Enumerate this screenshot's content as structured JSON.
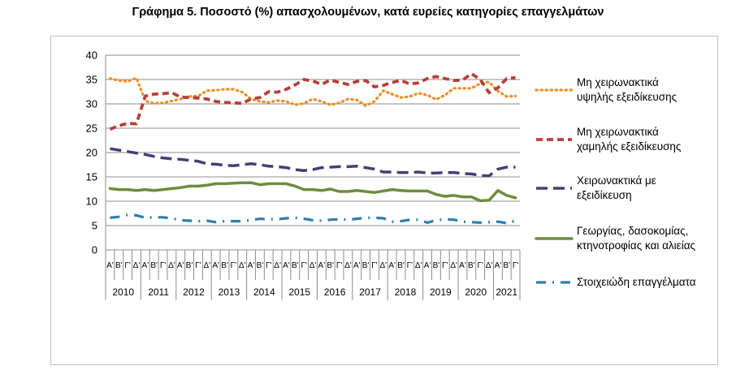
{
  "chart_data": {
    "type": "line",
    "title": "Γράφημα 5. Ποσοστό (%) απασχολουμένων, κατά ευρείες κατηγορίες επαγγελμάτων",
    "xlabel": "",
    "ylabel": "",
    "ylim": [
      0,
      40
    ],
    "yticks": [
      0,
      5,
      10,
      15,
      20,
      25,
      30,
      35,
      40
    ],
    "grid": true,
    "legend_position": "right",
    "quarters": [
      "Α'",
      "Β'",
      "Γ'",
      "Δ'"
    ],
    "years": [
      "2010",
      "2011",
      "2012",
      "2013",
      "2014",
      "2015",
      "2016",
      "2017",
      "2018",
      "2019",
      "2020",
      "2021"
    ],
    "x": [
      "2010Q1",
      "2010Q2",
      "2010Q3",
      "2010Q4",
      "2011Q1",
      "2011Q2",
      "2011Q3",
      "2011Q4",
      "2012Q1",
      "2012Q2",
      "2012Q3",
      "2012Q4",
      "2013Q1",
      "2013Q2",
      "2013Q3",
      "2013Q4",
      "2014Q1",
      "2014Q2",
      "2014Q3",
      "2014Q4",
      "2015Q1",
      "2015Q2",
      "2015Q3",
      "2015Q4",
      "2016Q1",
      "2016Q2",
      "2016Q3",
      "2016Q4",
      "2017Q1",
      "2017Q2",
      "2017Q3",
      "2017Q4",
      "2018Q1",
      "2018Q2",
      "2018Q3",
      "2018Q4",
      "2019Q1",
      "2019Q2",
      "2019Q3",
      "2019Q4",
      "2020Q1",
      "2020Q2",
      "2020Q3",
      "2020Q4",
      "2021Q1",
      "2021Q2",
      "2021Q3"
    ],
    "series": [
      {
        "name": "Μη χειρωνακτικά υψηλής εξειδίκευσης",
        "label_lines": [
          "Μη χειρωνακτικά",
          "υψηλής εξειδίκευσης"
        ],
        "color": "#E8922A",
        "dash": "dot",
        "values": [
          35.2,
          34.8,
          34.6,
          35.3,
          30.6,
          30.1,
          30.2,
          30.6,
          31.0,
          31.5,
          31.6,
          32.7,
          32.8,
          33.0,
          33.0,
          32.4,
          31.0,
          30.5,
          30.3,
          30.7,
          30.5,
          29.8,
          30.1,
          31.0,
          30.5,
          29.8,
          30.2,
          31.0,
          30.8,
          29.6,
          30.5,
          32.7,
          32.0,
          31.3,
          31.5,
          32.2,
          31.8,
          30.9,
          31.8,
          33.2,
          33.2,
          33.2,
          34.2,
          34.5,
          32.6,
          31.5,
          31.6
        ]
      },
      {
        "name": "Μη χειρωνακτικά χαμηλής εξειδίκευσης",
        "label_lines": [
          "Μη χειρωνακτικά",
          "χαμηλής εξειδίκευσης"
        ],
        "color": "#B6403A",
        "dash": "dash",
        "values": [
          24.8,
          25.5,
          26.0,
          25.9,
          31.6,
          32.0,
          32.1,
          32.3,
          31.4,
          31.3,
          31.2,
          31.0,
          30.5,
          30.3,
          30.2,
          30.1,
          31.0,
          31.3,
          32.5,
          32.4,
          33.0,
          33.9,
          35.0,
          34.7,
          34.0,
          34.9,
          34.4,
          34.0,
          34.6,
          34.8,
          33.5,
          33.8,
          34.4,
          34.8,
          34.1,
          34.3,
          35.2,
          35.6,
          35.2,
          34.8,
          34.9,
          36.2,
          35.0,
          32.3,
          33.3,
          35.2,
          35.4
        ]
      },
      {
        "name": "Χειρωνακτικά με εξειδίκευση",
        "label_lines": [
          "Χειρωνακτικά με",
          "εξειδίκευση"
        ],
        "color": "#4B3D73",
        "dash": "longdash",
        "values": [
          20.8,
          20.5,
          20.2,
          19.9,
          19.6,
          19.2,
          18.9,
          18.7,
          18.6,
          18.4,
          18.2,
          17.7,
          17.6,
          17.4,
          17.3,
          17.5,
          17.7,
          17.5,
          17.2,
          17.1,
          16.9,
          16.5,
          16.3,
          16.5,
          16.9,
          17.0,
          17.1,
          17.1,
          17.2,
          16.9,
          16.6,
          16.0,
          16.0,
          15.9,
          15.9,
          16.0,
          15.8,
          15.8,
          15.9,
          15.9,
          15.7,
          15.6,
          15.3,
          15.2,
          16.6,
          17.0,
          17.0
        ]
      },
      {
        "name": "Γεωργίας, δασοκομίας, κτηνοτροφίας και αλιείας",
        "label_lines": [
          "Γεωργίας, δασοκομίας,",
          "κτηνοτροφίας και αλιείας"
        ],
        "color": "#6E8C3E",
        "dash": "solid",
        "values": [
          12.6,
          12.4,
          12.4,
          12.2,
          12.4,
          12.2,
          12.4,
          12.6,
          12.8,
          13.1,
          13.1,
          13.3,
          13.6,
          13.6,
          13.7,
          13.8,
          13.8,
          13.4,
          13.6,
          13.6,
          13.6,
          13.1,
          12.4,
          12.4,
          12.2,
          12.5,
          12.0,
          12.0,
          12.2,
          12.0,
          11.8,
          12.1,
          12.4,
          12.2,
          12.1,
          12.1,
          12.1,
          11.4,
          11.0,
          11.2,
          10.9,
          10.9,
          10.1,
          10.2,
          12.2,
          11.2,
          10.7
        ]
      },
      {
        "name": "Στοιχειώδη επαγγέλματα",
        "label_lines": [
          "Στοιχειώδη επαγγέλματα"
        ],
        "color": "#2E7FA8",
        "dash": "dashdot",
        "values": [
          6.6,
          6.8,
          7.2,
          7.1,
          6.6,
          6.7,
          6.7,
          6.5,
          6.1,
          6.0,
          5.9,
          6.0,
          5.7,
          5.9,
          5.9,
          5.9,
          6.1,
          6.4,
          6.3,
          6.3,
          6.5,
          6.6,
          6.4,
          6.1,
          6.0,
          6.2,
          6.3,
          6.2,
          6.4,
          6.6,
          6.6,
          6.5,
          5.8,
          5.9,
          6.2,
          6.2,
          5.6,
          6.1,
          6.3,
          6.2,
          5.8,
          5.7,
          5.6,
          5.7,
          5.8,
          5.5,
          6.0
        ]
      }
    ]
  }
}
